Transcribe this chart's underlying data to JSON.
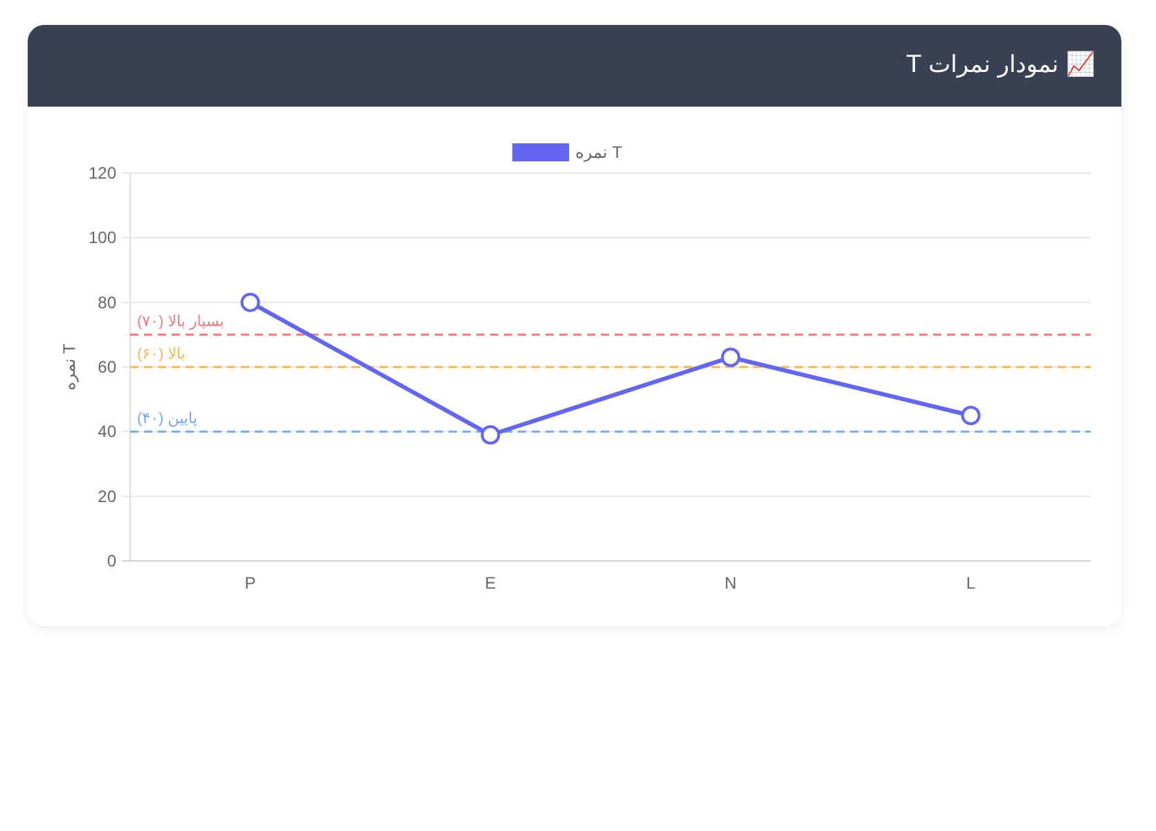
{
  "chart_data": {
    "type": "line",
    "title": "📈 نمودار نمرات T",
    "ylabel": "نمره T",
    "categories": [
      "P",
      "E",
      "N",
      "L"
    ],
    "series": [
      {
        "name": "نمره T",
        "color": "#6366f1",
        "values": [
          80,
          39,
          63,
          45
        ]
      }
    ],
    "ylim": [
      0,
      120
    ],
    "yticks": [
      0,
      20,
      40,
      60,
      80,
      100,
      120
    ],
    "grid": "y",
    "legend": "top",
    "marker": "circle",
    "line_style": "solid",
    "ref_lines": [
      {
        "axis": "y",
        "value": 70,
        "label": "بسیار بالا (۷۰)",
        "color": "#f27c7c",
        "line_style": "dashed"
      },
      {
        "axis": "y",
        "value": 60,
        "label": "بالا (۶۰)",
        "color": "#f5b84c",
        "line_style": "dashed"
      },
      {
        "axis": "y",
        "value": 40,
        "label": "پایین (۴۰)",
        "color": "#76a8f8",
        "line_style": "dashed"
      }
    ]
  }
}
